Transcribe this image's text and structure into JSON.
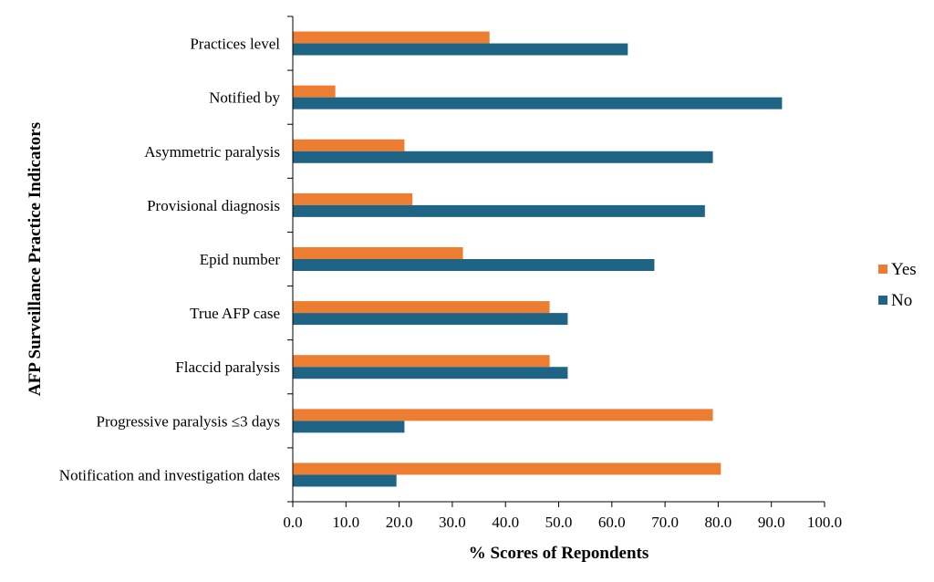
{
  "chart_data": {
    "type": "bar",
    "orientation": "horizontal",
    "categories": [
      "Practices level",
      "Notified by",
      "Asymmetric paralysis",
      "Provisional diagnosis",
      "Epid number",
      "True AFP case",
      "Flaccid paralysis",
      "Progressive paralysis ≤3 days",
      "Notification and investigation dates"
    ],
    "series": [
      {
        "name": "Yes",
        "color": "#ED7D31",
        "values": [
          37,
          8,
          21,
          22.5,
          32,
          48.3,
          48.3,
          79,
          80.5
        ]
      },
      {
        "name": "No",
        "color": "#1F6385",
        "values": [
          63,
          92,
          79,
          77.5,
          68,
          51.7,
          51.7,
          21,
          19.5
        ]
      }
    ],
    "x_ticks": [
      "0.0",
      "10.0",
      "20.0",
      "30.0",
      "40.0",
      "50.0",
      "60.0",
      "70.0",
      "80.0",
      "90.0",
      "100.0"
    ],
    "xlim": [
      0,
      100
    ],
    "xlabel": "% Scores of Repondents",
    "ylabel": "AFP Surveillance Practice Indicators",
    "legend_position": "right",
    "grid": false
  }
}
